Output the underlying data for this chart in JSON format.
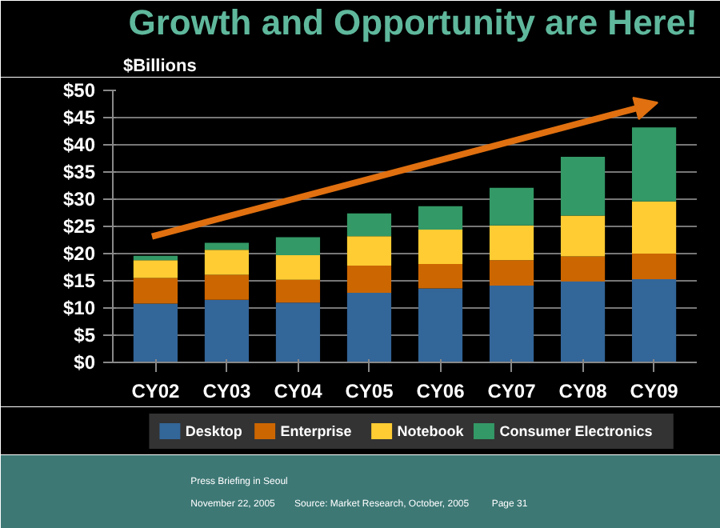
{
  "chart_data": {
    "type": "bar",
    "title": "Growth and Opportunity are Here!",
    "ylabel": "$Billions",
    "categories": [
      "CY02",
      "CY03",
      "CY04",
      "CY05",
      "CY06",
      "CY07",
      "CY08",
      "CY09"
    ],
    "stacked": true,
    "series": [
      {
        "name": "Desktop",
        "color": "#336699",
        "values": [
          10.8,
          11.5,
          11.0,
          12.8,
          13.6,
          14.1,
          14.9,
          15.3
        ]
      },
      {
        "name": "Enterprise",
        "color": "#cc6600",
        "values": [
          4.7,
          4.6,
          4.2,
          5.0,
          4.5,
          4.7,
          4.6,
          4.7
        ]
      },
      {
        "name": "Notebook",
        "color": "#ffcc33",
        "values": [
          3.3,
          4.6,
          4.5,
          5.4,
          6.3,
          6.4,
          7.5,
          9.6
        ]
      },
      {
        "name": "Consumer Electronics",
        "color": "#339966",
        "values": [
          0.8,
          1.3,
          3.3,
          4.2,
          4.3,
          6.9,
          10.8,
          13.6
        ]
      }
    ],
    "ylim": [
      0,
      50
    ],
    "yticks": [
      {
        "value": 0,
        "label": "$0"
      },
      {
        "value": 5,
        "label": "$5"
      },
      {
        "value": 10,
        "label": "$10"
      },
      {
        "value": 15,
        "label": "$15"
      },
      {
        "value": 20,
        "label": "$20"
      },
      {
        "value": 25,
        "label": "$25"
      },
      {
        "value": 30,
        "label": "$30"
      },
      {
        "value": 35,
        "label": "$35"
      },
      {
        "value": 40,
        "label": "$40"
      },
      {
        "value": 45,
        "label": "$45"
      },
      {
        "value": 50,
        "label": "$50"
      }
    ],
    "grid": "y",
    "legend": "bottom",
    "annotations": [
      "Press Briefing in Seoul",
      "November 22, 2005",
      "Source: Market Research, October, 2005",
      "Page 31"
    ]
  }
}
